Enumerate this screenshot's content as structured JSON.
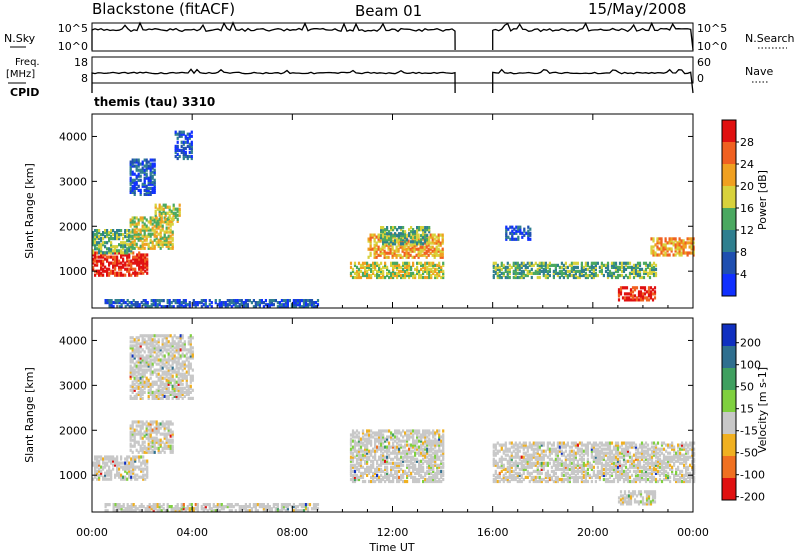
{
  "header": {
    "radar": "Blackstone (fitACF)",
    "beam": "Beam 01",
    "date": "15/May/2008"
  },
  "nsky_panel": {
    "left_label": "N.Sky",
    "left_top_tick": "10^5",
    "left_bottom_tick": "10^0",
    "right_label": "N.Search",
    "right_top_tick": "10^5",
    "right_bottom_tick": "10^0"
  },
  "freq_panel": {
    "left_label": "Freq.",
    "left_unit": "[MHz]",
    "left_top_tick": "18",
    "left_bottom_tick": "8",
    "right_label": "Nave",
    "right_top_tick": "60",
    "right_bottom_tick": "0"
  },
  "cpid": {
    "label": "CPID",
    "text": "themis (tau) 3310"
  },
  "chart_data": [
    {
      "type": "heatmap",
      "name": "power",
      "ylabel": "Slant Range [km]",
      "ylim": [
        180,
        4500
      ],
      "y_ticks": [
        "1000",
        "2000",
        "3000",
        "4000"
      ],
      "x_range_hours": [
        0,
        24
      ],
      "colorbar": {
        "label": "Power [dB]",
        "ticks": [
          "4",
          "8",
          "12",
          "16",
          "20",
          "24",
          "28"
        ],
        "colors": [
          "#1030ff",
          "#1f4fb0",
          "#2f7f8f",
          "#4aa860",
          "#d8d23c",
          "#f0a020",
          "#f06020",
          "#e01010"
        ]
      },
      "regions": [
        {
          "t": [
            0.0,
            2.2
          ],
          "r": [
            900,
            1400
          ],
          "level": 7
        },
        {
          "t": [
            0.0,
            1.6
          ],
          "r": [
            1400,
            1900
          ],
          "level": 3
        },
        {
          "t": [
            1.5,
            3.2
          ],
          "r": [
            1500,
            2200
          ],
          "level": 4
        },
        {
          "t": [
            2.5,
            3.5
          ],
          "r": [
            2100,
            2500
          ],
          "level": 4
        },
        {
          "t": [
            1.5,
            2.5
          ],
          "r": [
            2700,
            3500
          ],
          "level": 1
        },
        {
          "t": [
            3.3,
            4.0
          ],
          "r": [
            3500,
            4100
          ],
          "level": 1
        },
        {
          "t": [
            0.5,
            9.0
          ],
          "r": [
            200,
            350
          ],
          "level": 1
        },
        {
          "t": [
            10.3,
            14.0
          ],
          "r": [
            850,
            1200
          ],
          "level": 4
        },
        {
          "t": [
            11.0,
            14.0
          ],
          "r": [
            1300,
            1800
          ],
          "level": 5
        },
        {
          "t": [
            11.5,
            13.5
          ],
          "r": [
            1600,
            2000
          ],
          "level": 3
        },
        {
          "t": [
            16.0,
            22.5
          ],
          "r": [
            850,
            1200
          ],
          "level": 3
        },
        {
          "t": [
            21.0,
            22.5
          ],
          "r": [
            350,
            650
          ],
          "level": 7
        },
        {
          "t": [
            22.3,
            24.0
          ],
          "r": [
            1350,
            1750
          ],
          "level": 5
        },
        {
          "t": [
            16.5,
            17.5
          ],
          "r": [
            1700,
            2000
          ],
          "level": 1
        }
      ]
    },
    {
      "type": "heatmap",
      "name": "velocity",
      "ylabel": "Slant Range [km]",
      "ylim": [
        180,
        4500
      ],
      "y_ticks": [
        "1000",
        "2000",
        "3000",
        "4000"
      ],
      "x_range_hours": [
        0,
        24
      ],
      "colorbar": {
        "label": "Velocity [m s-1]",
        "ticks": [
          "200",
          "100",
          "50",
          "15",
          "-15",
          "-50",
          "-100",
          "-200"
        ],
        "colors": [
          "#1030c0",
          "#2f6f8f",
          "#3f9f5f",
          "#7fd03f",
          "#c8c8c8",
          "#f0b020",
          "#f07020",
          "#e01010"
        ]
      },
      "regions": [
        {
          "t": [
            0.0,
            2.2
          ],
          "r": [
            900,
            1400
          ],
          "level": 4
        },
        {
          "t": [
            1.5,
            3.2
          ],
          "r": [
            1500,
            2200
          ],
          "level": 4
        },
        {
          "t": [
            1.5,
            4.0
          ],
          "r": [
            2700,
            4100
          ],
          "level": 4
        },
        {
          "t": [
            0.5,
            9.0
          ],
          "r": [
            200,
            350
          ],
          "level": 3
        },
        {
          "t": [
            10.3,
            14.0
          ],
          "r": [
            850,
            2000
          ],
          "level": 4
        },
        {
          "t": [
            16.0,
            24.0
          ],
          "r": [
            850,
            1750
          ],
          "level": 4
        },
        {
          "t": [
            21.0,
            22.5
          ],
          "r": [
            350,
            650
          ],
          "level": 4
        }
      ]
    }
  ],
  "x_axis": {
    "label": "Time UT",
    "ticks": [
      "00:00",
      "04:00",
      "08:00",
      "12:00",
      "16:00",
      "20:00",
      "00:00"
    ]
  },
  "colors": {
    "axis": "#000000",
    "gap": "#ffffff"
  }
}
